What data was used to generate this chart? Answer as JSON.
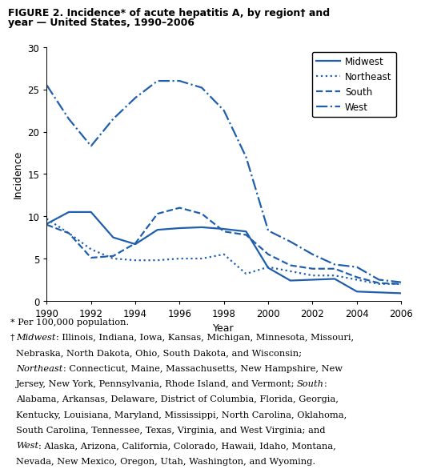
{
  "years": [
    1990,
    1991,
    1992,
    1993,
    1994,
    1995,
    1996,
    1997,
    1998,
    1999,
    2000,
    2001,
    2002,
    2003,
    2004,
    2005,
    2006
  ],
  "midwest": [
    9.1,
    10.5,
    10.5,
    7.5,
    6.7,
    8.4,
    8.6,
    8.7,
    8.5,
    8.2,
    3.9,
    2.4,
    2.5,
    2.6,
    1.1,
    1.0,
    0.9
  ],
  "northeast": [
    9.7,
    8.0,
    6.1,
    5.0,
    4.8,
    4.8,
    5.0,
    5.0,
    5.5,
    3.2,
    4.0,
    3.5,
    3.0,
    3.0,
    2.5,
    2.0,
    2.0
  ],
  "south": [
    9.0,
    8.0,
    5.1,
    5.3,
    6.8,
    10.3,
    11.0,
    10.3,
    8.2,
    7.8,
    5.5,
    4.2,
    3.8,
    3.8,
    2.8,
    2.1,
    2.0
  ],
  "west": [
    25.5,
    21.5,
    18.3,
    21.5,
    24.0,
    26.0,
    26.0,
    25.2,
    22.5,
    17.0,
    8.3,
    7.0,
    5.5,
    4.3,
    4.0,
    2.5,
    2.2
  ],
  "color": "#1f5fad",
  "title_line1": "FIGURE 2. Incidence* of acute hepatitis A, by region† and",
  "title_line2": "year — United States, 1990–2006",
  "ylabel": "Incidence",
  "xlabel": "Year",
  "ylim": [
    0,
    30
  ],
  "yticks": [
    0,
    5,
    10,
    15,
    20,
    25,
    30
  ],
  "xticks": [
    1990,
    1992,
    1994,
    1996,
    1998,
    2000,
    2002,
    2004,
    2006
  ],
  "legend_labels": [
    "Midwest",
    "Northeast",
    "South",
    "West"
  ]
}
